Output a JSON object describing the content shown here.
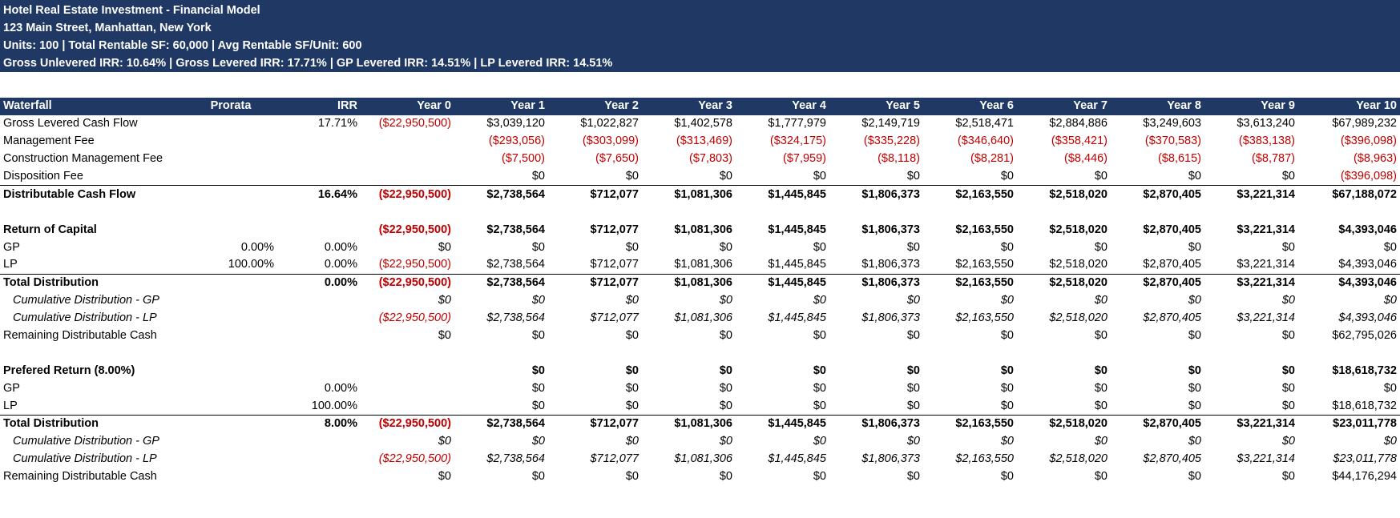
{
  "header": {
    "title": "Hotel Real Estate Investment - Financial Model",
    "address": "123 Main Street, Manhattan, New York",
    "units_line": "Units: 100 | Total Rentable SF: 60,000 | Avg Rentable SF/Unit: 600",
    "irr_line": "Gross Unlevered IRR: 10.64% | Gross Levered IRR: 17.71% | GP Levered IRR: 14.51% | LP Levered IRR: 14.51%"
  },
  "table": {
    "columns": [
      "Waterfall",
      "Prorata",
      "IRR",
      "Year 0",
      "Year 1",
      "Year 2",
      "Year 3",
      "Year 4",
      "Year 5",
      "Year 6",
      "Year 7",
      "Year 8",
      "Year 9",
      "Year 10"
    ],
    "rows": [
      {
        "label": "Gross Levered Cash Flow",
        "style": "",
        "prorata": "",
        "irr": "17.71%",
        "values": [
          "($22,950,500)",
          "$3,039,120",
          "$1,022,827",
          "$1,402,578",
          "$1,777,979",
          "$2,149,719",
          "$2,518,471",
          "$2,884,886",
          "$3,249,603",
          "$3,613,240",
          "$67,989,232"
        ]
      },
      {
        "label": "Management Fee",
        "style": "",
        "prorata": "",
        "irr": "",
        "values": [
          "",
          "($293,056)",
          "($303,099)",
          "($313,469)",
          "($324,175)",
          "($335,228)",
          "($346,640)",
          "($358,421)",
          "($370,583)",
          "($383,138)",
          "($396,098)"
        ]
      },
      {
        "label": "Construction Management Fee",
        "style": "",
        "prorata": "",
        "irr": "",
        "values": [
          "",
          "($7,500)",
          "($7,650)",
          "($7,803)",
          "($7,959)",
          "($8,118)",
          "($8,281)",
          "($8,446)",
          "($8,615)",
          "($8,787)",
          "($8,963)"
        ]
      },
      {
        "label": "Disposition Fee",
        "style": "",
        "prorata": "",
        "irr": "",
        "values": [
          "",
          "$0",
          "$0",
          "$0",
          "$0",
          "$0",
          "$0",
          "$0",
          "$0",
          "$0",
          "($396,098)"
        ]
      },
      {
        "label": "Distributable Cash Flow",
        "style": "bold line",
        "prorata": "",
        "irr": "16.64%",
        "values": [
          "($22,950,500)",
          "$2,738,564",
          "$712,077",
          "$1,081,306",
          "$1,445,845",
          "$1,806,373",
          "$2,163,550",
          "$2,518,020",
          "$2,870,405",
          "$3,221,314",
          "$67,188,072"
        ]
      },
      {
        "label": "",
        "style": "",
        "prorata": "",
        "irr": "",
        "values": [
          "",
          "",
          "",
          "",
          "",
          "",
          "",
          "",
          "",
          "",
          ""
        ]
      },
      {
        "label": "Return of Capital",
        "style": "bold",
        "prorata": "",
        "irr": "",
        "values": [
          "($22,950,500)",
          "$2,738,564",
          "$712,077",
          "$1,081,306",
          "$1,445,845",
          "$1,806,373",
          "$2,163,550",
          "$2,518,020",
          "$2,870,405",
          "$3,221,314",
          "$4,393,046"
        ]
      },
      {
        "label": "GP",
        "style": "",
        "prorata": "0.00%",
        "irr": "0.00%",
        "values": [
          "$0",
          "$0",
          "$0",
          "$0",
          "$0",
          "$0",
          "$0",
          "$0",
          "$0",
          "$0",
          "$0"
        ]
      },
      {
        "label": "LP",
        "style": "",
        "prorata": "100.00%",
        "irr": "0.00%",
        "values": [
          "($22,950,500)",
          "$2,738,564",
          "$712,077",
          "$1,081,306",
          "$1,445,845",
          "$1,806,373",
          "$2,163,550",
          "$2,518,020",
          "$2,870,405",
          "$3,221,314",
          "$4,393,046"
        ]
      },
      {
        "label": "Total Distribution",
        "style": "bold line",
        "prorata": "",
        "irr": "0.00%",
        "values": [
          "($22,950,500)",
          "$2,738,564",
          "$712,077",
          "$1,081,306",
          "$1,445,845",
          "$1,806,373",
          "$2,163,550",
          "$2,518,020",
          "$2,870,405",
          "$3,221,314",
          "$4,393,046"
        ]
      },
      {
        "label": "Cumulative Distribution - GP",
        "style": "ital",
        "prorata": "",
        "irr": "",
        "values": [
          "$0",
          "$0",
          "$0",
          "$0",
          "$0",
          "$0",
          "$0",
          "$0",
          "$0",
          "$0",
          "$0"
        ]
      },
      {
        "label": "Cumulative Distribution - LP",
        "style": "ital",
        "prorata": "",
        "irr": "",
        "values": [
          "($22,950,500)",
          "$2,738,564",
          "$712,077",
          "$1,081,306",
          "$1,445,845",
          "$1,806,373",
          "$2,163,550",
          "$2,518,020",
          "$2,870,405",
          "$3,221,314",
          "$4,393,046"
        ]
      },
      {
        "label": "Remaining Distributable Cash",
        "style": "",
        "prorata": "",
        "irr": "",
        "values": [
          "$0",
          "$0",
          "$0",
          "$0",
          "$0",
          "$0",
          "$0",
          "$0",
          "$0",
          "$0",
          "$62,795,026"
        ]
      },
      {
        "label": "",
        "style": "",
        "prorata": "",
        "irr": "",
        "values": [
          "",
          "",
          "",
          "",
          "",
          "",
          "",
          "",
          "",
          "",
          ""
        ]
      },
      {
        "label": "Prefered Return (8.00%)",
        "style": "bold",
        "prorata": "",
        "irr": "",
        "values": [
          "",
          "$0",
          "$0",
          "$0",
          "$0",
          "$0",
          "$0",
          "$0",
          "$0",
          "$0",
          "$18,618,732"
        ]
      },
      {
        "label": "GP",
        "style": "",
        "prorata": "",
        "irr": "0.00%",
        "values": [
          "",
          "$0",
          "$0",
          "$0",
          "$0",
          "$0",
          "$0",
          "$0",
          "$0",
          "$0",
          "$0"
        ]
      },
      {
        "label": "LP",
        "style": "",
        "prorata": "",
        "irr": "100.00%",
        "values": [
          "",
          "$0",
          "$0",
          "$0",
          "$0",
          "$0",
          "$0",
          "$0",
          "$0",
          "$0",
          "$18,618,732"
        ]
      },
      {
        "label": "Total Distribution",
        "style": "bold line",
        "prorata": "",
        "irr": "8.00%",
        "values": [
          "($22,950,500)",
          "$2,738,564",
          "$712,077",
          "$1,081,306",
          "$1,445,845",
          "$1,806,373",
          "$2,163,550",
          "$2,518,020",
          "$2,870,405",
          "$3,221,314",
          "$23,011,778"
        ]
      },
      {
        "label": "Cumulative Distribution - GP",
        "style": "ital",
        "prorata": "",
        "irr": "",
        "values": [
          "$0",
          "$0",
          "$0",
          "$0",
          "$0",
          "$0",
          "$0",
          "$0",
          "$0",
          "$0",
          "$0"
        ]
      },
      {
        "label": "Cumulative Distribution - LP",
        "style": "ital",
        "prorata": "",
        "irr": "",
        "values": [
          "($22,950,500)",
          "$2,738,564",
          "$712,077",
          "$1,081,306",
          "$1,445,845",
          "$1,806,373",
          "$2,163,550",
          "$2,518,020",
          "$2,870,405",
          "$3,221,314",
          "$23,011,778"
        ]
      },
      {
        "label": "Remaining Distributable Cash",
        "style": "",
        "prorata": "",
        "irr": "",
        "values": [
          "$0",
          "$0",
          "$0",
          "$0",
          "$0",
          "$0",
          "$0",
          "$0",
          "$0",
          "$0",
          "$44,176,294"
        ]
      }
    ]
  },
  "colors": {
    "header_bg": "#1f3864",
    "negative": "#c00000"
  }
}
